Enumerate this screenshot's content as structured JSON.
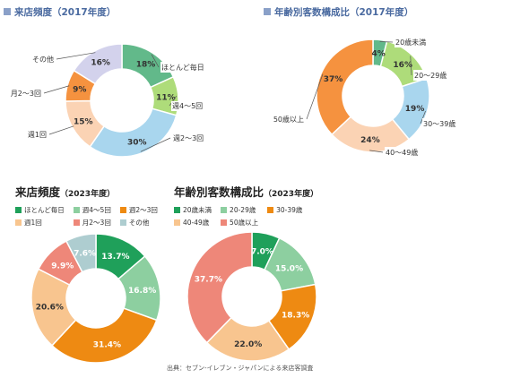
{
  "colors": {
    "c_green": "#1fa05a",
    "c_lightgreen": "#8dcfa0",
    "c_orange": "#ee8a12",
    "c_peach": "#f8c58f",
    "c_salmon": "#ee8779",
    "c_grayblue": "#aecdd0",
    "o_green": "#62b98a",
    "o_lime": "#aedc7a",
    "o_blue": "#a9d6ee",
    "o_peach": "#fbd3b4",
    "o_orange": "#f5923f",
    "o_lavender": "#d3d2ec"
  },
  "source": "出典：セブン-イレブン・ジャパンによる来店客調査",
  "chart_data": [
    {
      "type": "pie",
      "title": "来店頻度（2017年度）",
      "unit": "%",
      "categories": [
        "ほとんど毎日",
        "週4〜5回",
        "週2〜3回",
        "週1回",
        "月2〜3回",
        "その他"
      ],
      "values": [
        18,
        11,
        30,
        15,
        9,
        16
      ],
      "labels": [
        "18%",
        "11%",
        "30%",
        "15%",
        "9%",
        "16%"
      ],
      "palette": [
        "o_green",
        "o_lime",
        "o_blue",
        "o_peach",
        "o_orange",
        "o_lavender"
      ]
    },
    {
      "type": "pie",
      "title": "年齢別客数構成比（2017年度）",
      "unit": "%",
      "categories": [
        "20歳未満",
        "20〜29歳",
        "30〜39歳",
        "40〜49歳",
        "50歳以上"
      ],
      "values": [
        4,
        16,
        19,
        24,
        37
      ],
      "labels": [
        "4%",
        "16%",
        "19%",
        "24%",
        "37%"
      ],
      "palette": [
        "o_green",
        "o_lime",
        "o_blue",
        "o_peach",
        "o_orange"
      ]
    },
    {
      "type": "pie",
      "title": "来店頻度",
      "title_year": "（2023年度）",
      "legend": "top",
      "unit": "%",
      "categories": [
        "ほとんど毎日",
        "週4〜5回",
        "週2〜3回",
        "週1回",
        "月2〜3回",
        "その他"
      ],
      "values": [
        13.7,
        16.8,
        31.4,
        20.6,
        9.9,
        7.6
      ],
      "labels": [
        "13.7%",
        "16.8%",
        "31.4%",
        "20.6%",
        "9.9%",
        "7.6%"
      ],
      "palette": [
        "c_green",
        "c_lightgreen",
        "c_orange",
        "c_peach",
        "c_salmon",
        "c_grayblue"
      ]
    },
    {
      "type": "pie",
      "title": "年齢別客数構成比",
      "title_year": "（2023年度）",
      "legend": "top",
      "unit": "%",
      "categories": [
        "20歳未満",
        "20-29歳",
        "30-39歳",
        "40-49歳",
        "50歳以上"
      ],
      "values": [
        7.0,
        15.0,
        18.3,
        22.0,
        37.7
      ],
      "labels": [
        "7.0%",
        "15.0%",
        "18.3%",
        "22.0%",
        "37.7%"
      ],
      "palette": [
        "c_green",
        "c_lightgreen",
        "c_orange",
        "c_peach",
        "c_salmon"
      ]
    }
  ]
}
